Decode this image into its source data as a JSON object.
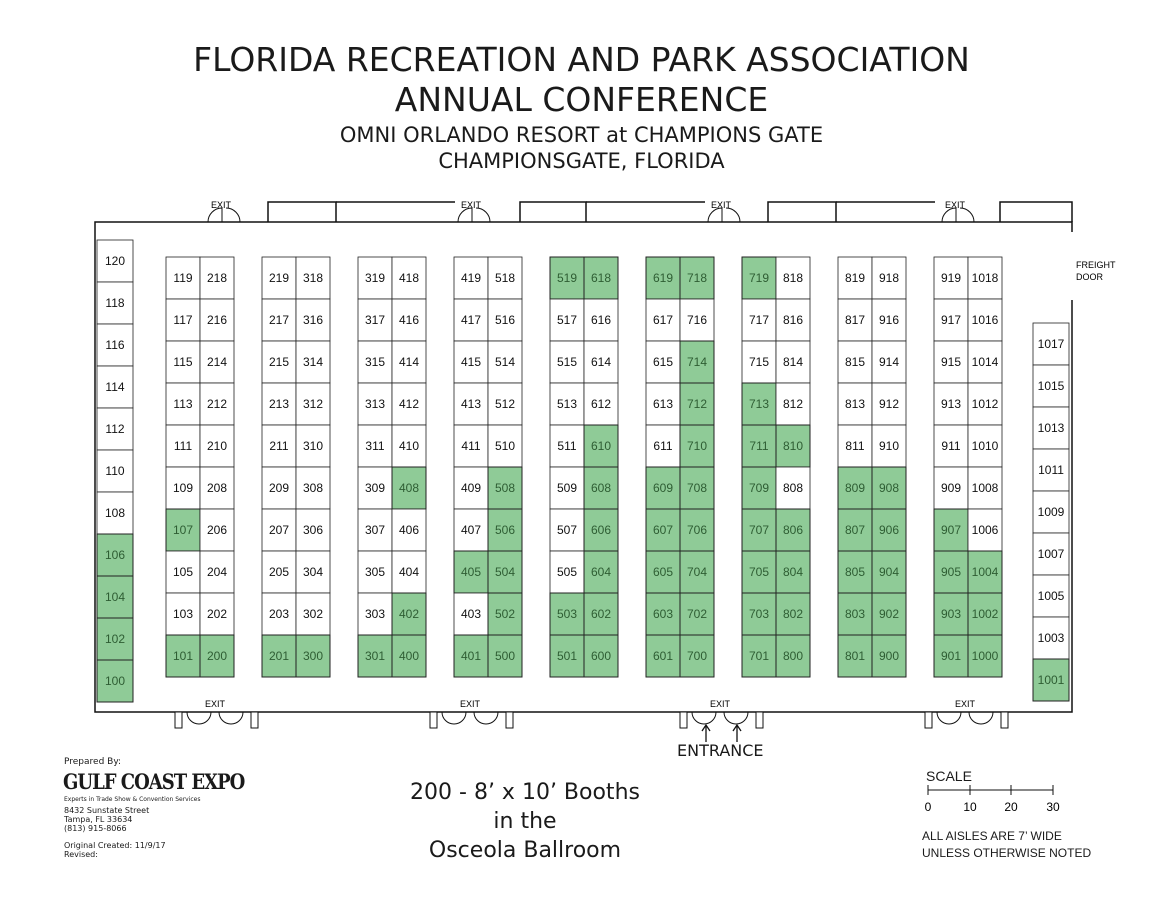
{
  "header": {
    "title_line1": "FLORIDA RECREATION AND PARK ASSOCIATION",
    "title_line2": "ANNUAL CONFERENCE",
    "venue": "OMNI ORLANDO RESORT at CHAMPIONS GATE",
    "location": "CHAMPIONSGATE, FLORIDA"
  },
  "labels": {
    "exit": "EXIT",
    "freight_door_line1": "FREIGHT",
    "freight_door_line2": "DOOR",
    "entrance": "ENTRANCE"
  },
  "booths": {
    "col_120_to_100": [
      "120",
      "118",
      "116",
      "114",
      "112",
      "110",
      "108",
      "106",
      "104",
      "102",
      "100"
    ],
    "col_1017_to_1001": [
      "1017",
      "1015",
      "1013",
      "1011",
      "1009",
      "1007",
      "1005",
      "1003",
      "1001"
    ],
    "island_pairs": [
      [
        [
          "119",
          "218"
        ],
        [
          "117",
          "216"
        ],
        [
          "115",
          "214"
        ],
        [
          "113",
          "212"
        ],
        [
          "111",
          "210"
        ],
        [
          "109",
          "208"
        ],
        [
          "107",
          "206"
        ],
        [
          "105",
          "204"
        ],
        [
          "103",
          "202"
        ],
        [
          "101",
          "200"
        ]
      ],
      [
        [
          "219",
          "318"
        ],
        [
          "217",
          "316"
        ],
        [
          "215",
          "314"
        ],
        [
          "213",
          "312"
        ],
        [
          "211",
          "310"
        ],
        [
          "209",
          "308"
        ],
        [
          "207",
          "306"
        ],
        [
          "205",
          "304"
        ],
        [
          "203",
          "302"
        ],
        [
          "201",
          "300"
        ]
      ],
      [
        [
          "319",
          "418"
        ],
        [
          "317",
          "416"
        ],
        [
          "315",
          "414"
        ],
        [
          "313",
          "412"
        ],
        [
          "311",
          "410"
        ],
        [
          "309",
          "408"
        ],
        [
          "307",
          "406"
        ],
        [
          "305",
          "404"
        ],
        [
          "303",
          "402"
        ],
        [
          "301",
          "400"
        ]
      ],
      [
        [
          "419",
          "518"
        ],
        [
          "417",
          "516"
        ],
        [
          "415",
          "514"
        ],
        [
          "413",
          "512"
        ],
        [
          "411",
          "510"
        ],
        [
          "409",
          "508"
        ],
        [
          "407",
          "506"
        ],
        [
          "405",
          "504"
        ],
        [
          "403",
          "502"
        ],
        [
          "401",
          "500"
        ]
      ],
      [
        [
          "519",
          "618"
        ],
        [
          "517",
          "616"
        ],
        [
          "515",
          "614"
        ],
        [
          "513",
          "612"
        ],
        [
          "511",
          "610"
        ],
        [
          "509",
          "608"
        ],
        [
          "507",
          "606"
        ],
        [
          "505",
          "604"
        ],
        [
          "503",
          "602"
        ],
        [
          "501",
          "600"
        ]
      ],
      [
        [
          "619",
          "718"
        ],
        [
          "617",
          "716"
        ],
        [
          "615",
          "714"
        ],
        [
          "613",
          "712"
        ],
        [
          "611",
          "710"
        ],
        [
          "609",
          "708"
        ],
        [
          "607",
          "706"
        ],
        [
          "605",
          "704"
        ],
        [
          "603",
          "702"
        ],
        [
          "601",
          "700"
        ]
      ],
      [
        [
          "719",
          "818"
        ],
        [
          "717",
          "816"
        ],
        [
          "715",
          "814"
        ],
        [
          "713",
          "812"
        ],
        [
          "711",
          "810"
        ],
        [
          "709",
          "808"
        ],
        [
          "707",
          "806"
        ],
        [
          "705",
          "804"
        ],
        [
          "703",
          "802"
        ],
        [
          "701",
          "800"
        ]
      ],
      [
        [
          "819",
          "918"
        ],
        [
          "817",
          "916"
        ],
        [
          "815",
          "914"
        ],
        [
          "813",
          "912"
        ],
        [
          "811",
          "910"
        ],
        [
          "809",
          "908"
        ],
        [
          "807",
          "906"
        ],
        [
          "805",
          "904"
        ],
        [
          "803",
          "902"
        ],
        [
          "801",
          "900"
        ]
      ],
      [
        [
          "919",
          "1018"
        ],
        [
          "917",
          "1016"
        ],
        [
          "915",
          "1014"
        ],
        [
          "913",
          "1012"
        ],
        [
          "911",
          "1010"
        ],
        [
          "909",
          "1008"
        ],
        [
          "907",
          "1006"
        ],
        [
          "905",
          "1004"
        ],
        [
          "903",
          "1002"
        ],
        [
          "901",
          "1000"
        ]
      ]
    ],
    "sold": [
      "106",
      "104",
      "102",
      "100",
      "107",
      "101",
      "200",
      "201",
      "300",
      "408",
      "402",
      "301",
      "400",
      "508",
      "506",
      "405",
      "504",
      "502",
      "401",
      "500",
      "519",
      "618",
      "610",
      "608",
      "606",
      "604",
      "503",
      "602",
      "501",
      "600",
      "619",
      "718",
      "714",
      "712",
      "710",
      "609",
      "708",
      "607",
      "706",
      "605",
      "704",
      "603",
      "702",
      "601",
      "700",
      "719",
      "713",
      "711",
      "810",
      "709",
      "707",
      "806",
      "705",
      "804",
      "703",
      "802",
      "701",
      "800",
      "809",
      "908",
      "807",
      "906",
      "805",
      "904",
      "803",
      "902",
      "801",
      "900",
      "907",
      "905",
      "1004",
      "903",
      "1002",
      "901",
      "1000",
      "1001"
    ],
    "sold_color": "#8fcb97"
  },
  "footer": {
    "prepared_by": "Prepared By:",
    "company": "GULF COAST EXPO",
    "tagline": "Experts in Trade Show & Convention Services",
    "address_line1": "8432 Sunstate Street",
    "address_line2": "Tampa, FL 33634",
    "phone": "(813) 915-8066",
    "original_created": "Original Created: 11/9/17",
    "revised": "Revised:"
  },
  "summary": {
    "line1": "200 - 8’ x 10’ Booths",
    "line2": "in the",
    "line3": "Osceola Ballroom"
  },
  "scale": {
    "label": "SCALE",
    "ticks": [
      "0",
      "10",
      "20",
      "30"
    ]
  },
  "notes": {
    "line1": "ALL AISLES ARE 7’ WIDE",
    "line2": "UNLESS OTHERWISE NOTED"
  }
}
